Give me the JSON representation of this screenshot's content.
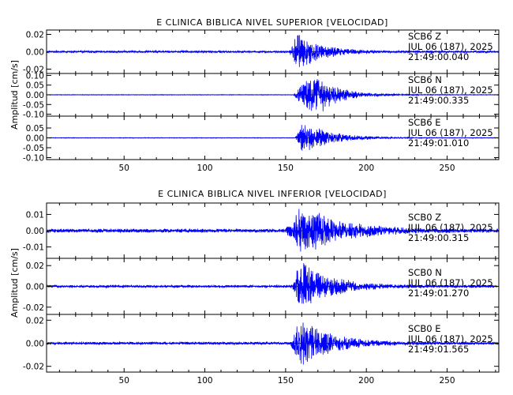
{
  "chart_data": [
    {
      "type": "line",
      "title": "E CLINICA BIBLICA NIVEL SUPERIOR [VELOCIDAD]",
      "ylabel": "Amplitud [cm/s]",
      "xlim": [
        2,
        282
      ],
      "x_ticks": [
        50,
        100,
        150,
        200,
        250
      ],
      "series": [
        {
          "name": "SCB6 Z",
          "date_label": "JUL 06 (187), 2025",
          "time_label": "21:49:00.040",
          "ylim": [
            -0.025,
            0.025
          ],
          "y_ticks": [
            -0.02,
            0.0,
            0.02
          ],
          "y_tick_labels": [
            "-0.02",
            "0.00",
            "0.02"
          ],
          "noise_amplitude": 0.0012,
          "arrival_x": 152,
          "peak_amplitude": 0.022,
          "peak_x": 158,
          "decay": 14,
          "coda_bumps": []
        },
        {
          "name": "SCB6 N",
          "date_label": "JUL 06 (187), 2025",
          "time_label": "21:49:00.335",
          "ylim": [
            -0.11,
            0.11
          ],
          "y_ticks": [
            -0.1,
            -0.05,
            0.0,
            0.05,
            0.1
          ],
          "y_tick_labels": [
            "-0.10",
            "-0.05",
            "0.00",
            "0.05",
            "0.10"
          ],
          "noise_amplitude": 0.0015,
          "arrival_x": 155,
          "peak_amplitude": 0.075,
          "peak_x": 162,
          "decay": 18,
          "coda_bumps": [
            {
              "x": 170,
              "amplitude": 0.045,
              "width": 5
            },
            {
              "x": 178,
              "amplitude": 0.022,
              "width": 5
            },
            {
              "x": 188,
              "amplitude": 0.01,
              "width": 6
            }
          ]
        },
        {
          "name": "SCB6 E",
          "date_label": "JUL 06 (187), 2025",
          "time_label": "21:49:01.010",
          "ylim": [
            -0.11,
            0.11
          ],
          "y_ticks": [
            -0.1,
            -0.05,
            0.0,
            0.05
          ],
          "y_tick_labels": [
            "-0.10",
            "-0.05",
            "0.00",
            "0.05"
          ],
          "noise_amplitude": 0.0015,
          "arrival_x": 156,
          "peak_amplitude": 0.09,
          "peak_x": 161,
          "decay": 16,
          "coda_bumps": []
        }
      ]
    },
    {
      "type": "line",
      "title": "E CLINICA BIBLICA NIVEL INFERIOR [VELOCIDAD]",
      "ylabel": "Amplitud [cm/s]",
      "xlim": [
        2,
        282
      ],
      "x_ticks": [
        50,
        100,
        150,
        200,
        250
      ],
      "series": [
        {
          "name": "SCB0 Z",
          "date_label": "JUL 06 (187), 2025",
          "time_label": "21:49:00.315",
          "ylim": [
            -0.017,
            0.017
          ],
          "y_ticks": [
            -0.01,
            0.0,
            0.01
          ],
          "y_tick_labels": [
            "-0.01",
            "0.00",
            "0.01"
          ],
          "noise_amplitude": 0.0012,
          "arrival_x": 150,
          "peak_amplitude": 0.016,
          "peak_x": 160,
          "decay": 22,
          "coda_bumps": []
        },
        {
          "name": "SCB0 N",
          "date_label": "JUL 06 (187), 2025",
          "time_label": "21:49:01.270",
          "ylim": [
            -0.027,
            0.027
          ],
          "y_ticks": [
            -0.02,
            0.0,
            0.02
          ],
          "y_tick_labels": [
            "-0.02",
            "0.00",
            "0.02"
          ],
          "noise_amplitude": 0.0012,
          "arrival_x": 153,
          "peak_amplitude": 0.025,
          "peak_x": 160,
          "decay": 18,
          "coda_bumps": []
        },
        {
          "name": "SCB0 E",
          "date_label": "JUL 06 (187), 2025",
          "time_label": "21:49:01.565",
          "ylim": [
            -0.025,
            0.025
          ],
          "y_ticks": [
            -0.02,
            0.0,
            0.02
          ],
          "y_tick_labels": [
            "-0.02",
            "0.00",
            "0.02"
          ],
          "noise_amplitude": 0.0012,
          "arrival_x": 153,
          "peak_amplitude": 0.022,
          "peak_x": 159,
          "decay": 18,
          "coda_bumps": []
        }
      ]
    }
  ],
  "colors": {
    "trace": "#0000ff",
    "axis": "#000000",
    "background": "#ffffff"
  }
}
